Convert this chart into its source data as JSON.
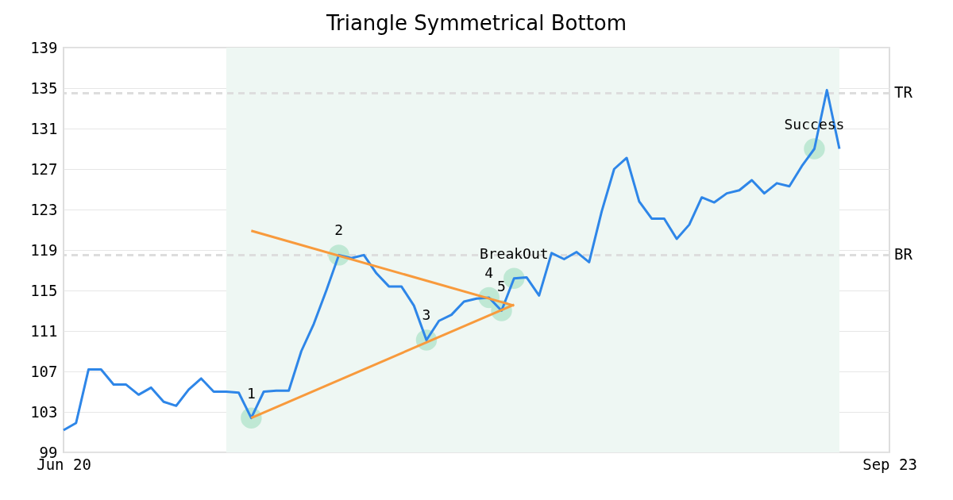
{
  "chart_data": {
    "type": "line",
    "title": "Triangle Symmetrical Bottom",
    "categories": [
      "Jun 20",
      null,
      null,
      null,
      null,
      null,
      null,
      null,
      null,
      null,
      null,
      null,
      null,
      null,
      null,
      null,
      null,
      null,
      null,
      null,
      null,
      null,
      null,
      null,
      null,
      null,
      null,
      null,
      null,
      null,
      null,
      null,
      null,
      null,
      null,
      null,
      null,
      null,
      null,
      null,
      null,
      null,
      null,
      null,
      null,
      null,
      null,
      null,
      null,
      null,
      null,
      null,
      null,
      null,
      null,
      null,
      null,
      null,
      null,
      null,
      null,
      null,
      null,
      null,
      null,
      null,
      "Sep 23"
    ],
    "ylim": [
      99,
      139
    ],
    "yticks": [
      99,
      103,
      107,
      111,
      115,
      119,
      123,
      127,
      131,
      135,
      139
    ],
    "series": [
      {
        "type": "line",
        "color": "#2e86e8",
        "values": [
          101.2,
          101.9,
          107.2,
          107.2,
          105.7,
          105.7,
          104.7,
          105.4,
          104.0,
          103.6,
          105.2,
          106.3,
          105.0,
          105.0,
          104.9,
          102.4,
          105.0,
          105.1,
          105.1,
          109.0,
          111.7,
          115.0,
          118.5,
          118.2,
          118.5,
          116.7,
          115.4,
          115.4,
          113.5,
          110.1,
          112.0,
          112.6,
          113.9,
          114.2,
          114.3,
          113.0,
          116.2,
          116.3,
          114.5,
          118.7,
          118.1,
          118.8,
          117.8,
          122.8,
          127.0,
          128.1,
          123.8,
          122.1,
          122.1,
          120.1,
          121.5,
          124.2,
          123.7,
          124.6,
          124.9,
          125.9,
          124.6,
          125.6,
          125.3,
          127.3,
          129.0,
          134.8,
          129.0,
          null,
          null,
          null,
          null
        ]
      },
      {
        "type": "line",
        "color": "#f89a3c",
        "values": [
          null,
          null,
          null,
          null,
          null,
          null,
          null,
          null,
          null,
          null,
          null,
          null,
          null,
          null,
          null,
          120.9,
          null,
          null,
          null,
          null,
          null,
          null,
          null,
          null,
          null,
          null,
          null,
          null,
          null,
          null,
          null,
          null,
          null,
          null,
          null,
          null,
          113.5,
          null,
          null,
          null,
          null,
          null,
          null,
          null,
          null,
          null,
          null,
          null,
          null,
          null,
          null,
          null,
          null,
          null,
          null,
          null,
          null,
          null,
          null,
          null,
          null,
          null,
          null,
          null,
          null,
          null,
          null
        ]
      },
      {
        "type": "line",
        "color": "#f89a3c",
        "values": [
          null,
          null,
          null,
          null,
          null,
          null,
          null,
          null,
          null,
          null,
          null,
          null,
          null,
          null,
          null,
          102.4,
          null,
          null,
          null,
          null,
          null,
          null,
          null,
          null,
          null,
          null,
          null,
          null,
          null,
          null,
          null,
          null,
          null,
          null,
          null,
          null,
          113.6,
          null,
          null,
          null,
          null,
          null,
          null,
          null,
          null,
          null,
          null,
          null,
          null,
          null,
          null,
          null,
          null,
          null,
          null,
          null,
          null,
          null,
          null,
          null,
          null,
          null,
          null,
          null,
          null,
          null,
          null
        ]
      },
      {
        "type": "scatter",
        "color": "#bfe8d4",
        "marker": "circle",
        "values": [
          null,
          null,
          null,
          null,
          null,
          null,
          null,
          null,
          null,
          null,
          null,
          null,
          null,
          null,
          null,
          102.4,
          null,
          null,
          null,
          null,
          null,
          null,
          118.5,
          null,
          null,
          null,
          null,
          null,
          null,
          110.1,
          null,
          null,
          null,
          null,
          114.3,
          113.0,
          116.2,
          null,
          null,
          null,
          null,
          null,
          null,
          null,
          null,
          null,
          null,
          null,
          null,
          null,
          null,
          null,
          null,
          null,
          null,
          null,
          null,
          null,
          null,
          null,
          129.0,
          null,
          null,
          null,
          null,
          null,
          null
        ]
      }
    ],
    "annotations": [
      {
        "text": "1",
        "y": 102.4
      },
      {
        "text": "2",
        "y": 118.5
      },
      {
        "text": "3",
        "y": 110.1
      },
      {
        "text": "4",
        "y": 114.3
      },
      {
        "text": "5",
        "y": 113.0
      },
      {
        "text": "BreakOut",
        "y": 116.2
      },
      {
        "text": "Success",
        "y": 129.0
      }
    ],
    "ref_lines": [
      {
        "axis": "y",
        "value": 134.5,
        "label": "TR",
        "color": "#dddddd",
        "line_style": "dashed"
      },
      {
        "axis": "y",
        "value": 118.5,
        "label": "BR",
        "color": "#dddddd",
        "line_style": "dashed"
      }
    ],
    "grid": "y"
  }
}
